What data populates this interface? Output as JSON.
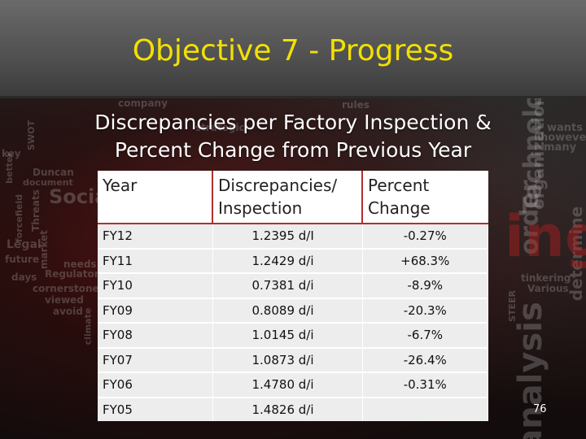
{
  "slide": {
    "title": "Objective 7 - Progress",
    "subtitle_line1": "Discrepancies per Factory Inspection &",
    "subtitle_line2": "Percent Change from Previous Year",
    "page_number": "76"
  },
  "table": {
    "headers": [
      "Year",
      "Discrepancies/ Inspection",
      "Percent Change"
    ],
    "rows": [
      {
        "year": "FY12",
        "disc": "1.2395 d/I",
        "pct": "-0.27%"
      },
      {
        "year": "FY11",
        "disc": "1.2429 d/i",
        "pct": "+68.3%"
      },
      {
        "year": "FY10",
        "disc": "0.7381 d/i",
        "pct": "-8.9%"
      },
      {
        "year": "FY09",
        "disc": "0.8089 d/i",
        "pct": "-20.3%"
      },
      {
        "year": "FY08",
        "disc": "1.0145 d/i",
        "pct": "-6.7%"
      },
      {
        "year": "FY07",
        "disc": "1.0873 d/i",
        "pct": "-26.4%"
      },
      {
        "year": "FY06",
        "disc": "1.4780 d/i",
        "pct": "-0.31%"
      },
      {
        "year": "FY05",
        "disc": "1.4826 d/i",
        "pct": ""
      }
    ]
  },
  "background_words": [
    "company",
    "Social",
    "Duncan",
    "document",
    "better",
    "key",
    "forcefield",
    "Threats",
    "Legal",
    "future",
    "days",
    "market",
    "Regulatory",
    "cornerstone",
    "viewed",
    "avoid",
    "climate",
    "needs",
    "Technology",
    "organization",
    "wants",
    "however",
    "many",
    "determine",
    "tinkering",
    "Various",
    "STEER",
    "analysis",
    "order",
    "ing",
    "rules",
    "strategic",
    "SWOT"
  ],
  "colors": {
    "title": "#f2e000",
    "subtitle": "#ffffff",
    "header_bg": "#ffffff",
    "cell_bg": "#ededed",
    "accent_red": "#b03030"
  }
}
